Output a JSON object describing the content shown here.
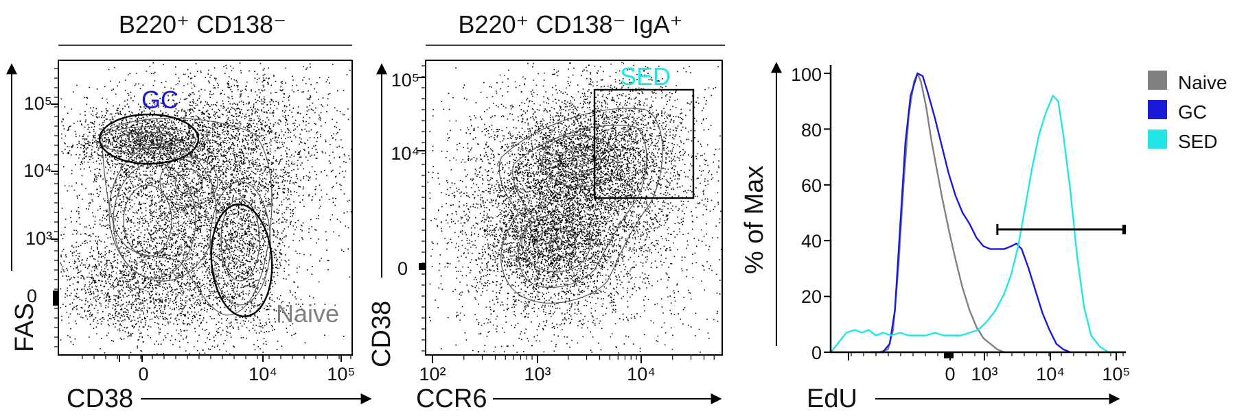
{
  "colors": {
    "naive": "#808080",
    "gc": "#1a1ad6",
    "sed": "#22e6e6",
    "axis": "#000000"
  },
  "chart_data": [
    {
      "type": "scatter",
      "header": "B220⁺ CD138⁻",
      "xlabel": "CD38",
      "ylabel": "FAS",
      "x_ticks": [
        "0",
        "10⁴",
        "10⁵"
      ],
      "y_ticks": [
        "10⁵",
        "10⁴",
        "10³",
        "0"
      ],
      "gates": [
        {
          "label": "GC",
          "color": "#1a1ad6"
        },
        {
          "label": "Naive",
          "color": "#808080"
        }
      ]
    },
    {
      "type": "scatter",
      "header": "B220⁺ CD138⁻ IgA⁺",
      "xlabel": "CCR6",
      "ylabel": "CD38",
      "x_ticks": [
        "10²",
        "10³",
        "10⁴"
      ],
      "y_ticks": [
        "10⁵",
        "10⁴",
        "0"
      ],
      "gates": [
        {
          "label": "SED",
          "color": "#22e6e6"
        }
      ]
    },
    {
      "type": "line",
      "xlabel": "EdU",
      "ylabel": "% of Max",
      "x_ticks": [
        "0",
        "10³",
        "10⁴",
        "10⁵"
      ],
      "y_ticks": [
        "100",
        "80",
        "60",
        "40",
        "20",
        "0"
      ],
      "ylim": [
        0,
        100
      ],
      "legend_position": "right",
      "series": [
        {
          "name": "Naive",
          "color": "#808080",
          "points": [
            [
              0.23,
              0
            ],
            [
              0.28,
              0
            ],
            [
              0.33,
              1
            ],
            [
              0.36,
              8
            ],
            [
              0.39,
              30
            ],
            [
              0.42,
              60
            ],
            [
              0.45,
              85
            ],
            [
              0.48,
              97
            ],
            [
              0.5,
              100
            ],
            [
              0.52,
              97
            ],
            [
              0.55,
              88
            ],
            [
              0.58,
              76
            ],
            [
              0.61,
              66
            ],
            [
              0.64,
              56
            ],
            [
              0.68,
              44
            ],
            [
              0.72,
              33
            ],
            [
              0.76,
              23
            ],
            [
              0.8,
              15
            ],
            [
              0.84,
              9
            ],
            [
              0.88,
              5
            ],
            [
              0.92,
              3
            ],
            [
              0.96,
              1
            ],
            [
              1.0,
              0
            ]
          ]
        },
        {
          "name": "GC",
          "color": "#1a1ad6",
          "points": [
            [
              0.23,
              0
            ],
            [
              0.3,
              0
            ],
            [
              0.34,
              3
            ],
            [
              0.37,
              15
            ],
            [
              0.4,
              45
            ],
            [
              0.43,
              75
            ],
            [
              0.46,
              92
            ],
            [
              0.5,
              100
            ],
            [
              0.53,
              99
            ],
            [
              0.56,
              93
            ],
            [
              0.6,
              84
            ],
            [
              0.64,
              74
            ],
            [
              0.68,
              64
            ],
            [
              0.72,
              56
            ],
            [
              0.76,
              50
            ],
            [
              0.8,
              46
            ],
            [
              0.84,
              41
            ],
            [
              0.88,
              38
            ],
            [
              0.92,
              37
            ],
            [
              0.96,
              37
            ],
            [
              1.0,
              37
            ],
            [
              1.04,
              38
            ],
            [
              1.07,
              39
            ],
            [
              1.1,
              37
            ],
            [
              1.14,
              30
            ],
            [
              1.18,
              22
            ],
            [
              1.22,
              14
            ],
            [
              1.26,
              8
            ],
            [
              1.3,
              3
            ],
            [
              1.34,
              1
            ],
            [
              1.38,
              0
            ]
          ]
        },
        {
          "name": "SED",
          "color": "#22e6e6",
          "points": [
            [
              0.0,
              0
            ],
            [
              0.04,
              3
            ],
            [
              0.09,
              7
            ],
            [
              0.14,
              8
            ],
            [
              0.18,
              7
            ],
            [
              0.22,
              8
            ],
            [
              0.26,
              6
            ],
            [
              0.3,
              7
            ],
            [
              0.35,
              6
            ],
            [
              0.4,
              7
            ],
            [
              0.45,
              6
            ],
            [
              0.5,
              6
            ],
            [
              0.55,
              6
            ],
            [
              0.6,
              7
            ],
            [
              0.65,
              6
            ],
            [
              0.7,
              6
            ],
            [
              0.75,
              6
            ],
            [
              0.8,
              7
            ],
            [
              0.85,
              8
            ],
            [
              0.9,
              11
            ],
            [
              0.95,
              15
            ],
            [
              1.0,
              21
            ],
            [
              1.04,
              28
            ],
            [
              1.08,
              38
            ],
            [
              1.12,
              52
            ],
            [
              1.16,
              66
            ],
            [
              1.2,
              78
            ],
            [
              1.24,
              86
            ],
            [
              1.28,
              92
            ],
            [
              1.31,
              90
            ],
            [
              1.34,
              78
            ],
            [
              1.38,
              58
            ],
            [
              1.42,
              34
            ],
            [
              1.46,
              16
            ],
            [
              1.5,
              6
            ],
            [
              1.55,
              2
            ],
            [
              1.6,
              0
            ],
            [
              1.7,
              0
            ]
          ]
        }
      ],
      "marker_gate": {
        "x_start": 0.96,
        "x_end": 1.7,
        "y": 44
      }
    }
  ]
}
